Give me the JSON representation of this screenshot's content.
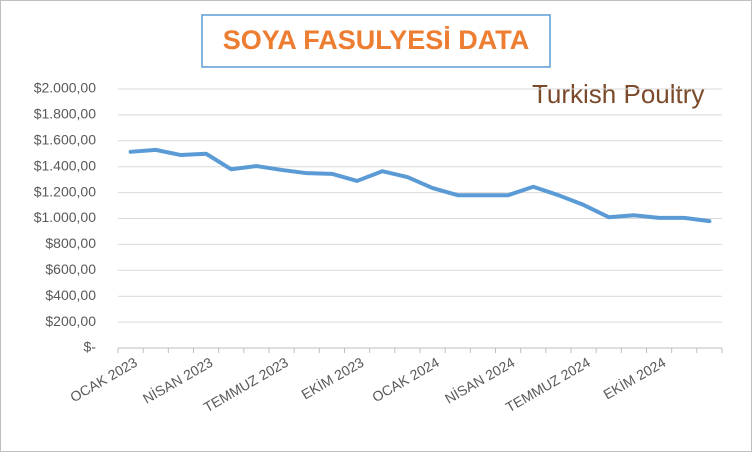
{
  "chart_data": {
    "type": "line",
    "title": "SOYA FASULYESİ DATA",
    "logo": "Turkish Poultry",
    "categories": [
      "OCAK 2023",
      null,
      null,
      "NİSAN 2023",
      null,
      null,
      "TEMMUZ 2023",
      null,
      null,
      "EKİM 2023",
      null,
      null,
      "OCAK 2024",
      null,
      null,
      "NİSAN 2024",
      null,
      null,
      "TEMMUZ 2024",
      null,
      null,
      "EKİM 2024",
      null,
      null
    ],
    "series": [
      {
        "name": "Soya Fasulyesi",
        "color": "#5b9bd5",
        "values": [
          1515,
          1530,
          1490,
          1500,
          1380,
          1405,
          1375,
          1350,
          1345,
          1290,
          1365,
          1320,
          1235,
          1180,
          1180,
          1180,
          1245,
          1180,
          1105,
          1010,
          1025,
          1005,
          1005,
          980
        ]
      }
    ],
    "ylim": [
      0,
      2000
    ],
    "yticks": [
      {
        "value": 0,
        "label": "$-"
      },
      {
        "value": 200,
        "label": "$200,00"
      },
      {
        "value": 400,
        "label": "$400,00"
      },
      {
        "value": 600,
        "label": "$600,00"
      },
      {
        "value": 800,
        "label": "$800,00"
      },
      {
        "value": 1000,
        "label": "$1.000,00"
      },
      {
        "value": 1200,
        "label": "$1.200,00"
      },
      {
        "value": 1400,
        "label": "$1.400,00"
      },
      {
        "value": 1600,
        "label": "$1.600,00"
      },
      {
        "value": 1800,
        "label": "$1.800,00"
      },
      {
        "value": 2000,
        "label": "$2.000,00"
      }
    ],
    "grid": true
  }
}
